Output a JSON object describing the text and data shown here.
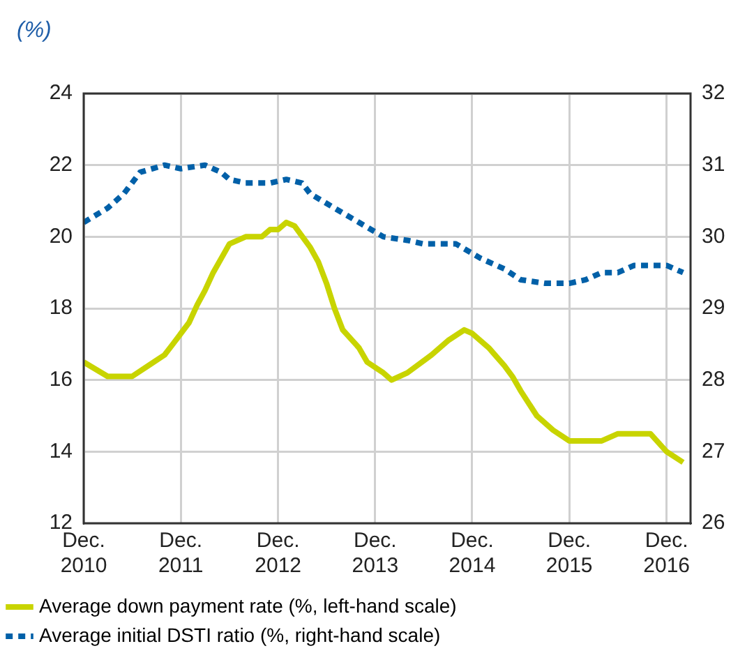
{
  "chart_data": {
    "type": "line",
    "ylabel": "(%)",
    "xlim": [
      "2010-12",
      "2017-03"
    ],
    "xticks": [
      {
        "value": "2010-12",
        "label": "Dec. 2010"
      },
      {
        "value": "2011-12",
        "label": "Dec. 2011"
      },
      {
        "value": "2012-12",
        "label": "Dec. 2012"
      },
      {
        "value": "2013-12",
        "label": "Dec. 2013"
      },
      {
        "value": "2014-12",
        "label": "Dec. 2014"
      },
      {
        "value": "2015-12",
        "label": "Dec. 2015"
      },
      {
        "value": "2016-12",
        "label": "Dec. 2016"
      }
    ],
    "ylim": [
      12,
      24
    ],
    "yticks": [
      12,
      14,
      16,
      18,
      20,
      22,
      24
    ],
    "y2lim": [
      26,
      32
    ],
    "y2ticks": [
      26,
      27,
      28,
      29,
      30,
      31,
      32
    ],
    "grid": true,
    "legend": "bottom",
    "series": [
      {
        "name": "Average down payment rate (%, left-hand scale)",
        "color": "#c8d400",
        "line_style": "solid",
        "x": [
          "2010-12",
          "2011-03",
          "2011-06",
          "2011-08",
          "2011-10",
          "2011-11",
          "2012-01",
          "2012-02",
          "2012-03",
          "2012-04",
          "2012-06",
          "2012-08",
          "2012-10",
          "2012-11",
          "2012-12",
          "2013-01",
          "2013-02",
          "2013-04",
          "2013-05",
          "2013-06",
          "2013-07",
          "2013-08",
          "2013-10",
          "2013-11",
          "2014-01",
          "2014-02",
          "2014-04",
          "2014-07",
          "2014-09",
          "2014-11",
          "2014-12",
          "2015-02",
          "2015-04",
          "2015-05",
          "2015-06",
          "2015-08",
          "2015-10",
          "2015-12",
          "2016-04",
          "2016-06",
          "2016-10",
          "2016-12",
          "2017-02"
        ],
        "values": [
          16.5,
          16.1,
          16.1,
          16.4,
          16.7,
          17.0,
          17.6,
          18.1,
          18.5,
          19.0,
          19.8,
          20.0,
          20.0,
          20.2,
          20.2,
          20.4,
          20.3,
          19.7,
          19.3,
          18.7,
          18.0,
          17.4,
          16.9,
          16.5,
          16.2,
          16.0,
          16.2,
          16.7,
          17.1,
          17.4,
          17.3,
          16.9,
          16.4,
          16.1,
          15.7,
          15.0,
          14.6,
          14.3,
          14.3,
          14.5,
          14.5,
          14.0,
          13.7
        ]
      },
      {
        "name": "Average initial DSTI ratio (%, right-hand scale)",
        "color": "#0060a8",
        "line_style": "dotted",
        "axis": "y2",
        "x": [
          "2010-12",
          "2011-03",
          "2011-05",
          "2011-07",
          "2011-10",
          "2011-12",
          "2012-03",
          "2012-05",
          "2012-06",
          "2012-08",
          "2012-11",
          "2013-01",
          "2013-03",
          "2013-04",
          "2013-07",
          "2013-10",
          "2014-01",
          "2014-04",
          "2014-06",
          "2014-10",
          "2015-01",
          "2015-04",
          "2015-06",
          "2015-09",
          "2015-12",
          "2016-02",
          "2016-04",
          "2016-06",
          "2016-08",
          "2016-12",
          "2017-02"
        ],
        "values": [
          30.2,
          30.4,
          30.6,
          30.9,
          31.0,
          30.95,
          31.0,
          30.9,
          30.8,
          30.75,
          30.75,
          30.8,
          30.75,
          30.6,
          30.4,
          30.2,
          30.0,
          29.95,
          29.9,
          29.9,
          29.7,
          29.55,
          29.4,
          29.35,
          29.35,
          29.4,
          29.5,
          29.5,
          29.6,
          29.6,
          29.5
        ]
      }
    ]
  }
}
